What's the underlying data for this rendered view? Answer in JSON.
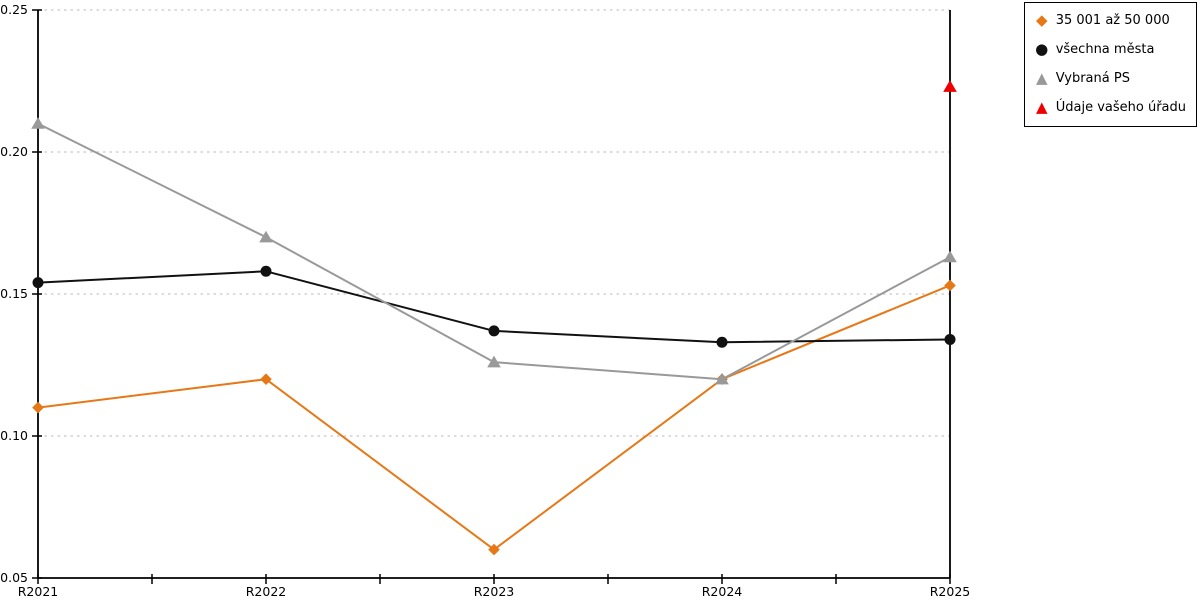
{
  "chart_data": {
    "type": "line",
    "categories": [
      "R2021",
      "R2022",
      "R2023",
      "R2024",
      "R2025"
    ],
    "series": [
      {
        "name": "35 001 až 50 000",
        "color": "#e67817",
        "marker": "diamond",
        "line": true,
        "values": [
          0.11,
          0.12,
          0.06,
          0.12,
          0.153
        ]
      },
      {
        "name": "všechna města",
        "color": "#111111",
        "marker": "circle",
        "line": true,
        "values": [
          0.154,
          0.158,
          0.137,
          0.133,
          0.134
        ]
      },
      {
        "name": "Vybraná PS",
        "color": "#999999",
        "marker": "triangle",
        "line": true,
        "values": [
          0.21,
          0.17,
          0.126,
          0.12,
          0.163
        ]
      },
      {
        "name": "Údaje vašeho úřadu",
        "color": "#ee0000",
        "marker": "triangle",
        "line": false,
        "values": [
          null,
          null,
          null,
          null,
          0.223
        ]
      }
    ],
    "title": "",
    "xlabel": "",
    "ylabel": "",
    "ylim": [
      0.05,
      0.25
    ],
    "ytick_values": [
      0.05,
      0.1,
      0.15,
      0.2,
      0.25
    ],
    "ytick_labels": [
      "0.05",
      "0.10",
      "0.15",
      "0.20",
      "0.25"
    ],
    "grid": true,
    "gridline_color": "#c8c8c8",
    "axis_color": "#000000",
    "legend_position": "top-right"
  }
}
